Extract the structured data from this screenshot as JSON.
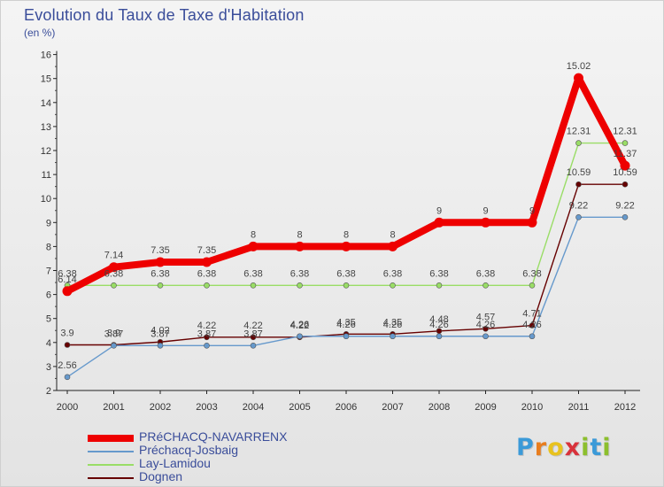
{
  "header": {
    "title": "Evolution du Taux de Taxe d'Habitation",
    "unit": "(en %)"
  },
  "logo": {
    "letters": [
      "P",
      "r",
      "o",
      "x",
      "i",
      "t",
      "i"
    ],
    "colors": [
      "#3b9ad8",
      "#e87d1e",
      "#e8c21e",
      "#d8323b",
      "#8cbf2d",
      "#3b9ad8",
      "#8cbf2d"
    ]
  },
  "chart_data": {
    "type": "line",
    "title": "Evolution du Taux de Taxe d'Habitation",
    "ylabel": "(en %)",
    "xlabel": "",
    "x": [
      "2000",
      "2001",
      "2002",
      "2003",
      "2004",
      "2005",
      "2006",
      "2007",
      "2008",
      "2009",
      "2010",
      "2011",
      "2012"
    ],
    "ylim": [
      2,
      16
    ],
    "yticks": [
      "2",
      "3",
      "4",
      "5",
      "6",
      "7",
      "8",
      "9",
      "10",
      "11",
      "12",
      "13",
      "14",
      "15",
      "16"
    ],
    "grid": false,
    "legend": "bottom-left",
    "series": [
      {
        "name": "PRéCHACQ-NAVARRENX",
        "color": "#ee0000",
        "values": [
          6.14,
          7.14,
          7.35,
          7.35,
          8,
          8,
          8,
          8,
          9,
          9,
          9,
          15.02,
          11.37
        ],
        "labels": [
          "6.14",
          "7.14",
          "7.35",
          "7.35",
          "8",
          "8",
          "8",
          "8",
          "9",
          "9",
          "9",
          "15.02",
          "11.37"
        ]
      },
      {
        "name": "Préchacq-Josbaig",
        "color": "#6699cc",
        "values": [
          2.56,
          3.87,
          3.87,
          3.87,
          3.87,
          4.26,
          4.26,
          4.26,
          4.26,
          4.26,
          4.26,
          9.22,
          9.22
        ],
        "labels": [
          "2.56",
          "3.87",
          "3.87",
          "3.87",
          "3.87",
          "4.26",
          "4.26",
          "4.26",
          "4.26",
          "4.26",
          "4.26",
          "9.22",
          "9.22"
        ]
      },
      {
        "name": "Lay-Lamidou",
        "color": "#99dd66",
        "values": [
          6.38,
          6.38,
          6.38,
          6.38,
          6.38,
          6.38,
          6.38,
          6.38,
          6.38,
          6.38,
          6.38,
          12.31,
          12.31
        ],
        "labels": [
          "6.38",
          "6.38",
          "6.38",
          "6.38",
          "6.38",
          "6.38",
          "6.38",
          "6.38",
          "6.38",
          "6.38",
          "6.38",
          "12.31",
          "12.31"
        ]
      },
      {
        "name": "Dognen",
        "color": "#660000",
        "values": [
          3.9,
          3.9,
          4.02,
          4.22,
          4.22,
          4.22,
          4.35,
          4.35,
          4.48,
          4.57,
          4.71,
          10.59,
          10.59
        ],
        "labels": [
          "3.9",
          "3.9",
          "4.02",
          "4.22",
          "4.22",
          "4.22",
          "4.35",
          "4.35",
          "4.48",
          "4.57",
          "4.71",
          "10.59",
          "10.59"
        ]
      }
    ]
  }
}
